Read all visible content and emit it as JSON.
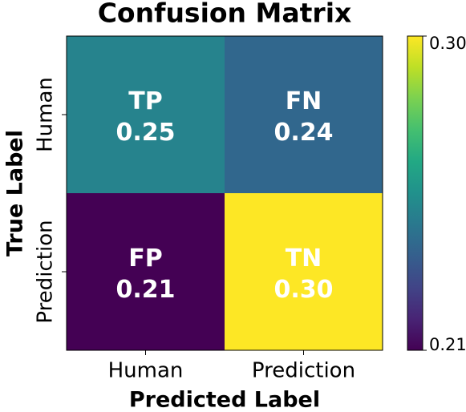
{
  "chart_data": {
    "type": "heatmap",
    "title": "Confusion Matrix",
    "x_label": "Predicted Label",
    "y_label": "True Label",
    "x_categories": [
      "Human",
      "Prediction"
    ],
    "y_categories": [
      "Human",
      "Prediction"
    ],
    "cell_labels": [
      [
        "TP",
        "FN"
      ],
      [
        "FP",
        "TN"
      ]
    ],
    "values": [
      [
        0.25,
        0.24
      ],
      [
        0.21,
        0.3
      ]
    ],
    "value_labels": [
      [
        "0.25",
        "0.24"
      ],
      [
        "0.21",
        "0.30"
      ]
    ],
    "colormap": "viridis",
    "clim": [
      0.21,
      0.3
    ],
    "cticks": [
      0.21,
      {
        "value": 0.3,
        "label": "0.30"
      }
    ]
  }
}
